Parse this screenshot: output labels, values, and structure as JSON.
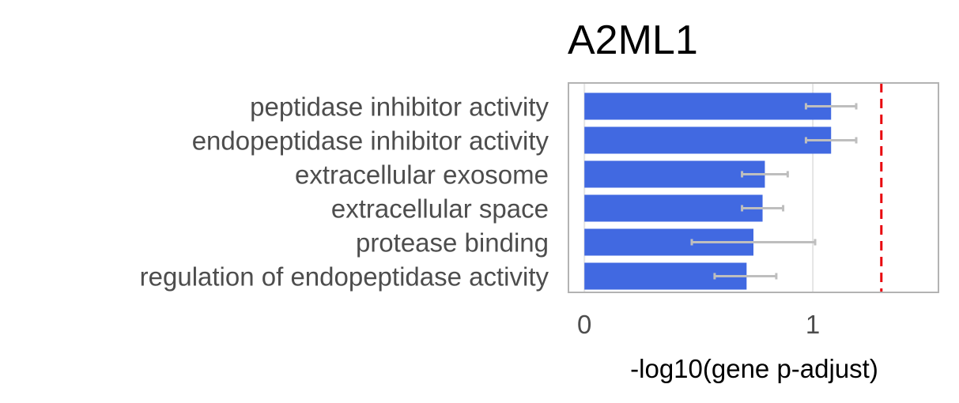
{
  "chart_data": {
    "type": "bar",
    "orientation": "horizontal",
    "title": "A2ML1",
    "xlabel": "-log10(gene p-adjust)",
    "ylabel": "",
    "categories": [
      "peptidase inhibitor activity",
      "endopeptidase inhibitor activity",
      "extracellular exosome",
      "extracellular space",
      "protease binding",
      "regulation of endopeptidase activity"
    ],
    "series": [
      {
        "values": [
          1.08,
          1.08,
          0.79,
          0.78,
          0.74,
          0.71
        ],
        "error_low": [
          0.97,
          0.97,
          0.69,
          0.69,
          0.47,
          0.57
        ],
        "error_high": [
          1.19,
          1.19,
          0.89,
          0.87,
          1.01,
          0.84
        ]
      }
    ],
    "xlim": [
      -0.07,
      1.55
    ],
    "xticks": [
      0,
      1
    ],
    "xtick_labels": [
      "0",
      "1"
    ],
    "threshold_line": 1.3,
    "grid": true,
    "legend": "none",
    "colors": {
      "bar": "#4169e1",
      "error_bar": "#bebebe",
      "threshold": "#e8000b",
      "frame": "#b3b3b3",
      "grid": "#e5e5e5"
    }
  }
}
